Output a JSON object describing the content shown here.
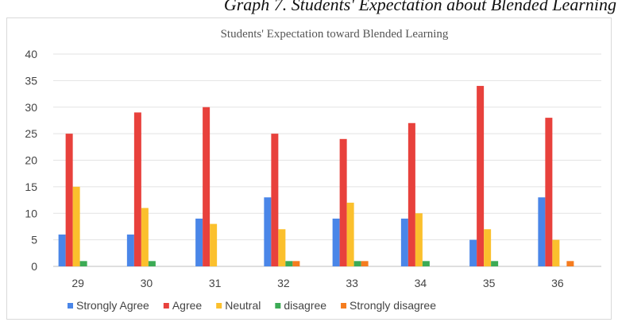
{
  "caption": "Graph 7. Students' Expectation about Blended Learning",
  "chart_data": {
    "type": "bar",
    "title": "Students' Expectation toward Blended Learning",
    "xlabel": "",
    "ylabel": "",
    "ylim": [
      0,
      40
    ],
    "yticks": [
      0,
      5,
      10,
      15,
      20,
      25,
      30,
      35,
      40
    ],
    "categories": [
      "29",
      "30",
      "31",
      "32",
      "33",
      "34",
      "35",
      "36"
    ],
    "grid": true,
    "legend_position": "bottom",
    "series": [
      {
        "name": "Strongly Agree",
        "color": "#4a86e8",
        "values": [
          6,
          6,
          9,
          13,
          9,
          9,
          5,
          13
        ]
      },
      {
        "name": "Agree",
        "color": "#e8413c",
        "values": [
          25,
          29,
          30,
          25,
          24,
          27,
          34,
          28
        ]
      },
      {
        "name": "Neutral",
        "color": "#fbc02d",
        "values": [
          15,
          11,
          8,
          7,
          12,
          10,
          7,
          5
        ]
      },
      {
        "name": "disagree",
        "color": "#3cab55",
        "values": [
          1,
          1,
          0,
          1,
          1,
          1,
          1,
          0
        ]
      },
      {
        "name": "Strongly disagree",
        "color": "#f57c1f",
        "values": [
          0,
          0,
          0,
          1,
          1,
          0,
          0,
          1
        ]
      }
    ]
  }
}
